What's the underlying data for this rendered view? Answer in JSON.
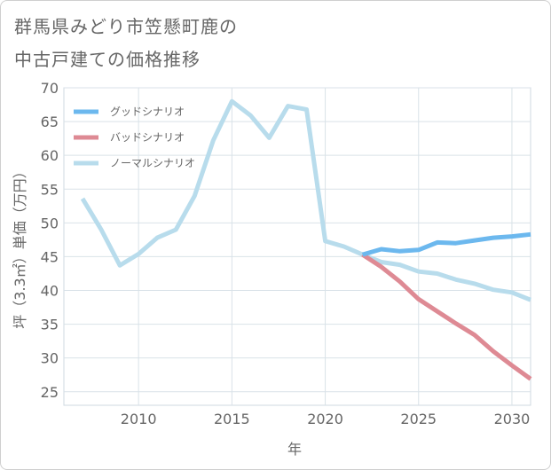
{
  "title_lines": [
    "群馬県みどり市笠懸町鹿の",
    "中古戸建ての価格推移"
  ],
  "chart_data": {
    "type": "line",
    "xlabel": "年",
    "ylabel": "坪（3.3㎡）単価（万円）",
    "xlim": [
      2006,
      2031
    ],
    "ylim": [
      23,
      70
    ],
    "xticks": [
      2010,
      2015,
      2020,
      2025,
      2030
    ],
    "yticks": [
      25,
      30,
      35,
      40,
      45,
      50,
      55,
      60,
      65,
      70
    ],
    "grid": true,
    "legend_position": "top-left",
    "series": [
      {
        "name": "グッドシナリオ",
        "color": "#6cb8ee",
        "x": [
          2022,
          2023,
          2024,
          2025,
          2026,
          2027,
          2028,
          2029,
          2030,
          2031
        ],
        "y": [
          45.3,
          46.1,
          45.8,
          46.0,
          47.1,
          47.0,
          47.4,
          47.8,
          48.0,
          48.3
        ]
      },
      {
        "name": "バッドシナリオ",
        "color": "#de8a94",
        "x": [
          2022,
          2023,
          2024,
          2025,
          2026,
          2027,
          2028,
          2029,
          2030,
          2031
        ],
        "y": [
          45.3,
          43.5,
          41.3,
          38.7,
          36.9,
          35.1,
          33.4,
          31.0,
          28.9,
          26.9
        ]
      },
      {
        "name": "ノーマルシナリオ",
        "color": "#b8dcec",
        "x": [
          2007,
          2008,
          2009,
          2010,
          2011,
          2012,
          2013,
          2014,
          2015,
          2016,
          2017,
          2018,
          2019,
          2020,
          2021,
          2022,
          2023,
          2024,
          2025,
          2026,
          2027,
          2028,
          2029,
          2030,
          2031
        ],
        "y": [
          53.6,
          49.0,
          43.7,
          45.4,
          47.8,
          49.0,
          54.0,
          62.2,
          68.0,
          65.9,
          62.6,
          67.3,
          66.8,
          47.3,
          46.5,
          45.3,
          44.2,
          43.8,
          42.8,
          42.5,
          41.6,
          41.0,
          40.1,
          39.7,
          38.6
        ]
      }
    ]
  }
}
